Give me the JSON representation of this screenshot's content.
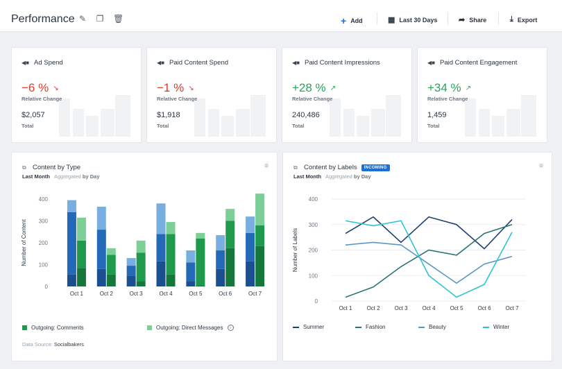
{
  "header": {
    "title": "Performance",
    "actions": {
      "add": "Add",
      "date_range": "Last 30 Days",
      "share": "Share",
      "export": "Export"
    }
  },
  "kpis": [
    {
      "title": "Ad Spend",
      "change": "−6 %",
      "direction": "down",
      "change_label": "Relative Change",
      "total": "$2,057",
      "total_label": "Total"
    },
    {
      "title": "Paid Content Spend",
      "change": "−1 %",
      "direction": "down",
      "change_label": "Relative Change",
      "total": "$1,918",
      "total_label": "Total"
    },
    {
      "title": "Paid Content Impressions",
      "change": "+28 %",
      "direction": "up",
      "change_label": "Relative Change",
      "total": "240,486",
      "total_label": "Total"
    },
    {
      "title": "Paid Content Engagement",
      "change": "+34 %",
      "direction": "up",
      "change_label": "Relative Change",
      "total": "1,459",
      "total_label": "Total"
    }
  ],
  "colors": {
    "negative": "#e0382b",
    "positive": "#2aa35a",
    "accent": "#1a6fd8",
    "inc_dark": "#1f5ea8",
    "inc_light": "#78aee0",
    "out_dark": "#1f9a4c",
    "out_light": "#7bcf97",
    "summer": "#1c3f72",
    "fashion": "#2a7374",
    "beauty": "#5c97c4",
    "winter": "#2ec4cf"
  },
  "panels": {
    "content_by_type": {
      "title": "Content by Type",
      "period": "Last Month",
      "aggregated_prefix": "Aggregated",
      "aggregated_by": "by Day",
      "legend": [
        "Outgoing: Comments",
        "Outgoing: Direct Messages"
      ],
      "source_label": "Data Source:",
      "source_value": "Socialbakers"
    },
    "content_by_labels": {
      "title": "Content by Labels",
      "badge": "INCOMING",
      "period": "Last Month",
      "aggregated_prefix": "Aggregated",
      "aggregated_by": "by Day",
      "legend": [
        "Summer",
        "Fashion",
        "Beauty",
        "Winter"
      ]
    }
  },
  "chart_data": [
    {
      "type": "bar",
      "stacked": true,
      "grouped": true,
      "title": "Content by Type",
      "ylabel": "Number of Content",
      "ylim": [
        0,
        400
      ],
      "yticks": [
        0,
        100,
        200,
        300,
        400
      ],
      "categories": [
        "Oct 1",
        "Oct 2",
        "Oct 3",
        "Oct 4",
        "Oct 5",
        "Oct 6",
        "Oct 7"
      ],
      "groups": [
        {
          "group": "incoming",
          "series": [
            {
              "values": [
                55,
                80,
                50,
                115,
                25,
                80,
                115
              ]
            },
            {
              "values": [
                285,
                180,
                45,
                125,
                85,
                85,
                130
              ]
            },
            {
              "values": [
                55,
                105,
                35,
                140,
                55,
                70,
                75
              ]
            }
          ]
        },
        {
          "group": "outgoing",
          "series": [
            {
              "name": "Outgoing: Comments",
              "values": [
                85,
                55,
                25,
                55,
                5,
                175,
                185
              ]
            },
            {
              "values": [
                125,
                90,
                130,
                185,
                215,
                125,
                95
              ]
            },
            {
              "name": "Outgoing: Direct Messages",
              "values": [
                105,
                30,
                55,
                55,
                25,
                55,
                145
              ]
            }
          ]
        }
      ]
    },
    {
      "type": "line",
      "title": "Content by Labels",
      "ylabel": "Number of Labels",
      "ylim": [
        0,
        400
      ],
      "yticks": [
        0,
        100,
        200,
        300,
        400
      ],
      "categories": [
        "Oct 1",
        "Oct 2",
        "Oct 3",
        "Oct 4",
        "Oct 5",
        "Oct 6",
        "Oct 7"
      ],
      "series": [
        {
          "name": "Summer",
          "values": [
            265,
            330,
            230,
            330,
            300,
            205,
            320
          ]
        },
        {
          "name": "Fashion",
          "values": [
            15,
            55,
            135,
            200,
            180,
            265,
            300
          ]
        },
        {
          "name": "Beauty",
          "values": [
            220,
            230,
            220,
            145,
            70,
            145,
            175
          ]
        },
        {
          "name": "Winter",
          "values": [
            315,
            295,
            315,
            100,
            15,
            65,
            270
          ]
        }
      ]
    }
  ]
}
